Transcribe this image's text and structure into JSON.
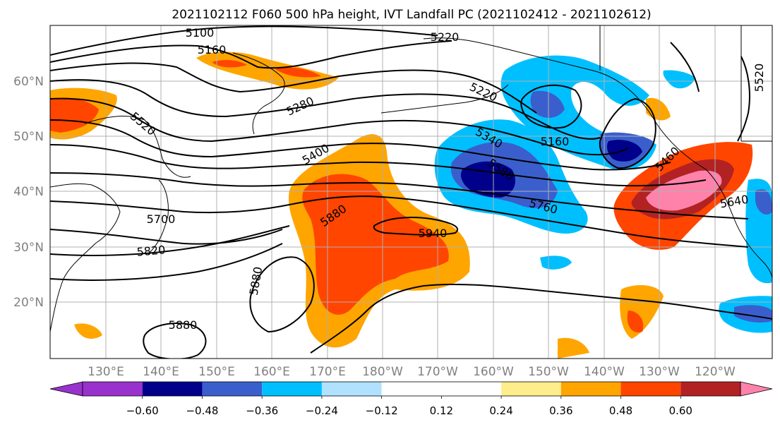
{
  "title": "2021102112 F060 500 hPa height, IVT Landfall PC (2021102412 - 2021102612)",
  "lat_labels": [
    "60°N",
    "50°N",
    "40°N",
    "30°N",
    "20°N"
  ],
  "lon_labels": [
    "130°E",
    "140°E",
    "150°E",
    "160°E",
    "170°E",
    "180°W",
    "170°W",
    "160°W",
    "150°W",
    "140°W",
    "130°W",
    "120°W"
  ],
  "contour_labels": [
    "5100",
    "5160",
    "5220",
    "5220",
    "5280",
    "5520",
    "5340",
    "5160",
    "5400",
    "5460",
    "5580",
    "5700",
    "5760",
    "5880",
    "5940",
    "5820",
    "5640",
    "5880",
    "5880",
    "5520"
  ],
  "colorbar": {
    "colors": [
      "#9932cc",
      "#00008b",
      "#3a5fcd",
      "#00bfff",
      "#b0e2ff",
      "#ffffff",
      "#ffffff",
      "#ffec8b",
      "#ffa500",
      "#ff4500",
      "#b22222",
      "#ff82ab"
    ],
    "tick_labels": [
      "−0.60",
      "−0.48",
      "−0.36",
      "−0.24",
      "−0.12",
      "0.12",
      "0.24",
      "0.36",
      "0.48",
      "0.60"
    ]
  }
}
